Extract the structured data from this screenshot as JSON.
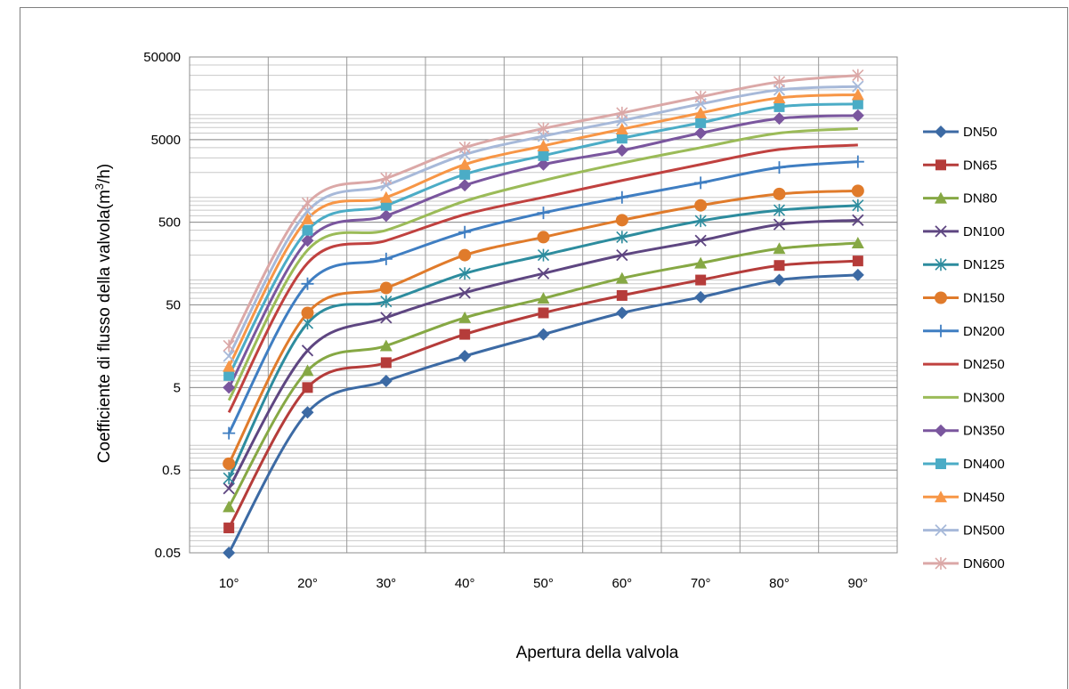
{
  "chart_data": {
    "type": "line",
    "title": "",
    "xlabel": "Apertura della valvola",
    "ylabel_prefix": "Coefficiente di flusso della valvola(m",
    "ylabel_sup": "3",
    "ylabel_suffix": "/h)",
    "y_scale": "log",
    "ylim": [
      0.05,
      50000
    ],
    "y_tick_labels": [
      "50000",
      "5000",
      "500",
      "50",
      "5",
      "0.5",
      "0.05"
    ],
    "y_tick_values": [
      50000,
      5000,
      500,
      50,
      5,
      0.5,
      0.05
    ],
    "categories": [
      "10°",
      "20°",
      "30°",
      "40°",
      "50°",
      "60°",
      "70°",
      "80°",
      "90°"
    ],
    "grid": true,
    "legend_position": "right",
    "series": [
      {
        "name": "DN50",
        "color": "#3c6aa4",
        "marker": "diamond",
        "values": [
          0.05,
          2.5,
          6,
          12,
          22,
          40,
          62,
          100,
          115
        ]
      },
      {
        "name": "DN65",
        "color": "#b53c3a",
        "marker": "square",
        "values": [
          0.1,
          5,
          10,
          22,
          40,
          65,
          100,
          150,
          170
        ]
      },
      {
        "name": "DN80",
        "color": "#86a844",
        "marker": "triangle",
        "values": [
          0.18,
          8,
          16,
          35,
          60,
          105,
          160,
          240,
          280
        ]
      },
      {
        "name": "DN100",
        "color": "#5e4681",
        "marker": "x",
        "values": [
          0.3,
          14,
          35,
          70,
          120,
          200,
          300,
          470,
          530
        ]
      },
      {
        "name": "DN125",
        "color": "#2d8c9e",
        "marker": "asterisk",
        "values": [
          0.4,
          30,
          55,
          120,
          200,
          330,
          520,
          700,
          800
        ]
      },
      {
        "name": "DN150",
        "color": "#e07b2b",
        "marker": "circle",
        "values": [
          0.6,
          40,
          80,
          200,
          330,
          530,
          800,
          1100,
          1200
        ]
      },
      {
        "name": "DN200",
        "color": "#3f7ec2",
        "marker": "plus",
        "values": [
          1.4,
          90,
          180,
          380,
          650,
          1000,
          1500,
          2300,
          2700
        ]
      },
      {
        "name": "DN250",
        "color": "#c0413f",
        "marker": "none",
        "values": [
          2.5,
          160,
          300,
          620,
          1000,
          1600,
          2500,
          3800,
          4300
        ]
      },
      {
        "name": "DN300",
        "color": "#9bbb58",
        "marker": "none",
        "values": [
          3.5,
          230,
          400,
          900,
          1600,
          2600,
          4000,
          6000,
          6800
        ]
      },
      {
        "name": "DN350",
        "color": "#7a569e",
        "marker": "diamond",
        "values": [
          5,
          300,
          600,
          1400,
          2500,
          3700,
          6000,
          9000,
          9800
        ]
      },
      {
        "name": "DN400",
        "color": "#4bacc6",
        "marker": "square",
        "values": [
          7,
          400,
          800,
          1900,
          3200,
          5200,
          8000,
          12500,
          13500
        ]
      },
      {
        "name": "DN450",
        "color": "#f79646",
        "marker": "triangle",
        "values": [
          9,
          550,
          1000,
          2500,
          4200,
          6700,
          10500,
          16000,
          17500
        ]
      },
      {
        "name": "DN500",
        "color": "#a7b9d9",
        "marker": "x",
        "values": [
          12,
          680,
          1400,
          3300,
          5500,
          8500,
          13500,
          20000,
          22000
        ]
      },
      {
        "name": "DN600",
        "color": "#dba8a7",
        "marker": "asterisk",
        "values": [
          16,
          850,
          1700,
          4000,
          6800,
          10500,
          16500,
          25000,
          30000
        ]
      }
    ]
  }
}
